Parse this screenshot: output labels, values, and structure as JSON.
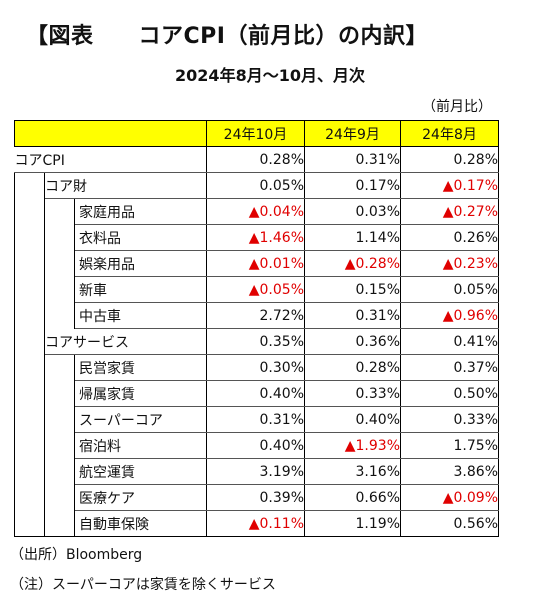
{
  "title": "【図表　　コアCPI（前月比）の内訳】",
  "subtitle": "2024年8月～10月、月次",
  "unit": "（前月比）",
  "columns": [
    "24年10月",
    "24年9月",
    "24年8月"
  ],
  "neg_color": "#e00000",
  "header_color": "#ffff00",
  "rows": [
    {
      "label": "コアCPI",
      "level": 0,
      "values": [
        "0.28%",
        "0.31%",
        "0.28%"
      ],
      "negative": [
        false,
        false,
        false
      ]
    },
    {
      "label": "コア財",
      "level": 1,
      "values": [
        "0.05%",
        "0.17%",
        "▲0.17%"
      ],
      "negative": [
        false,
        false,
        true
      ]
    },
    {
      "label": "家庭用品",
      "level": 2,
      "values": [
        "▲0.04%",
        "0.03%",
        "▲0.27%"
      ],
      "negative": [
        true,
        false,
        true
      ]
    },
    {
      "label": "衣料品",
      "level": 2,
      "values": [
        "▲1.46%",
        "1.14%",
        "0.26%"
      ],
      "negative": [
        true,
        false,
        false
      ]
    },
    {
      "label": "娯楽用品",
      "level": 2,
      "values": [
        "▲0.01%",
        "▲0.28%",
        "▲0.23%"
      ],
      "negative": [
        true,
        true,
        true
      ]
    },
    {
      "label": "新車",
      "level": 2,
      "values": [
        "▲0.05%",
        "0.15%",
        "0.05%"
      ],
      "negative": [
        true,
        false,
        false
      ]
    },
    {
      "label": "中古車",
      "level": 2,
      "values": [
        "2.72%",
        "0.31%",
        "▲0.96%"
      ],
      "negative": [
        false,
        false,
        true
      ]
    },
    {
      "label": "コアサービス",
      "level": 1,
      "values": [
        "0.35%",
        "0.36%",
        "0.41%"
      ],
      "negative": [
        false,
        false,
        false
      ]
    },
    {
      "label": "民営家賃",
      "level": 2,
      "values": [
        "0.30%",
        "0.28%",
        "0.37%"
      ],
      "negative": [
        false,
        false,
        false
      ]
    },
    {
      "label": "帰属家賃",
      "level": 2,
      "values": [
        "0.40%",
        "0.33%",
        "0.50%"
      ],
      "negative": [
        false,
        false,
        false
      ]
    },
    {
      "label": "スーパーコア",
      "level": 2,
      "values": [
        "0.31%",
        "0.40%",
        "0.33%"
      ],
      "negative": [
        false,
        false,
        false
      ]
    },
    {
      "label": "宿泊料",
      "level": 2,
      "values": [
        "0.40%",
        "▲1.93%",
        "1.75%"
      ],
      "negative": [
        false,
        true,
        false
      ]
    },
    {
      "label": "航空運賃",
      "level": 2,
      "values": [
        "3.19%",
        "3.16%",
        "3.86%"
      ],
      "negative": [
        false,
        false,
        false
      ]
    },
    {
      "label": "医療ケア",
      "level": 2,
      "values": [
        "0.39%",
        "0.66%",
        "▲0.09%"
      ],
      "negative": [
        false,
        false,
        true
      ]
    },
    {
      "label": "自動車保険",
      "level": 2,
      "values": [
        "▲0.11%",
        "1.19%",
        "0.56%"
      ],
      "negative": [
        true,
        false,
        false
      ]
    }
  ],
  "source": "（出所）Bloomberg",
  "note": "（注）スーパーコアは家賃を除くサービス"
}
